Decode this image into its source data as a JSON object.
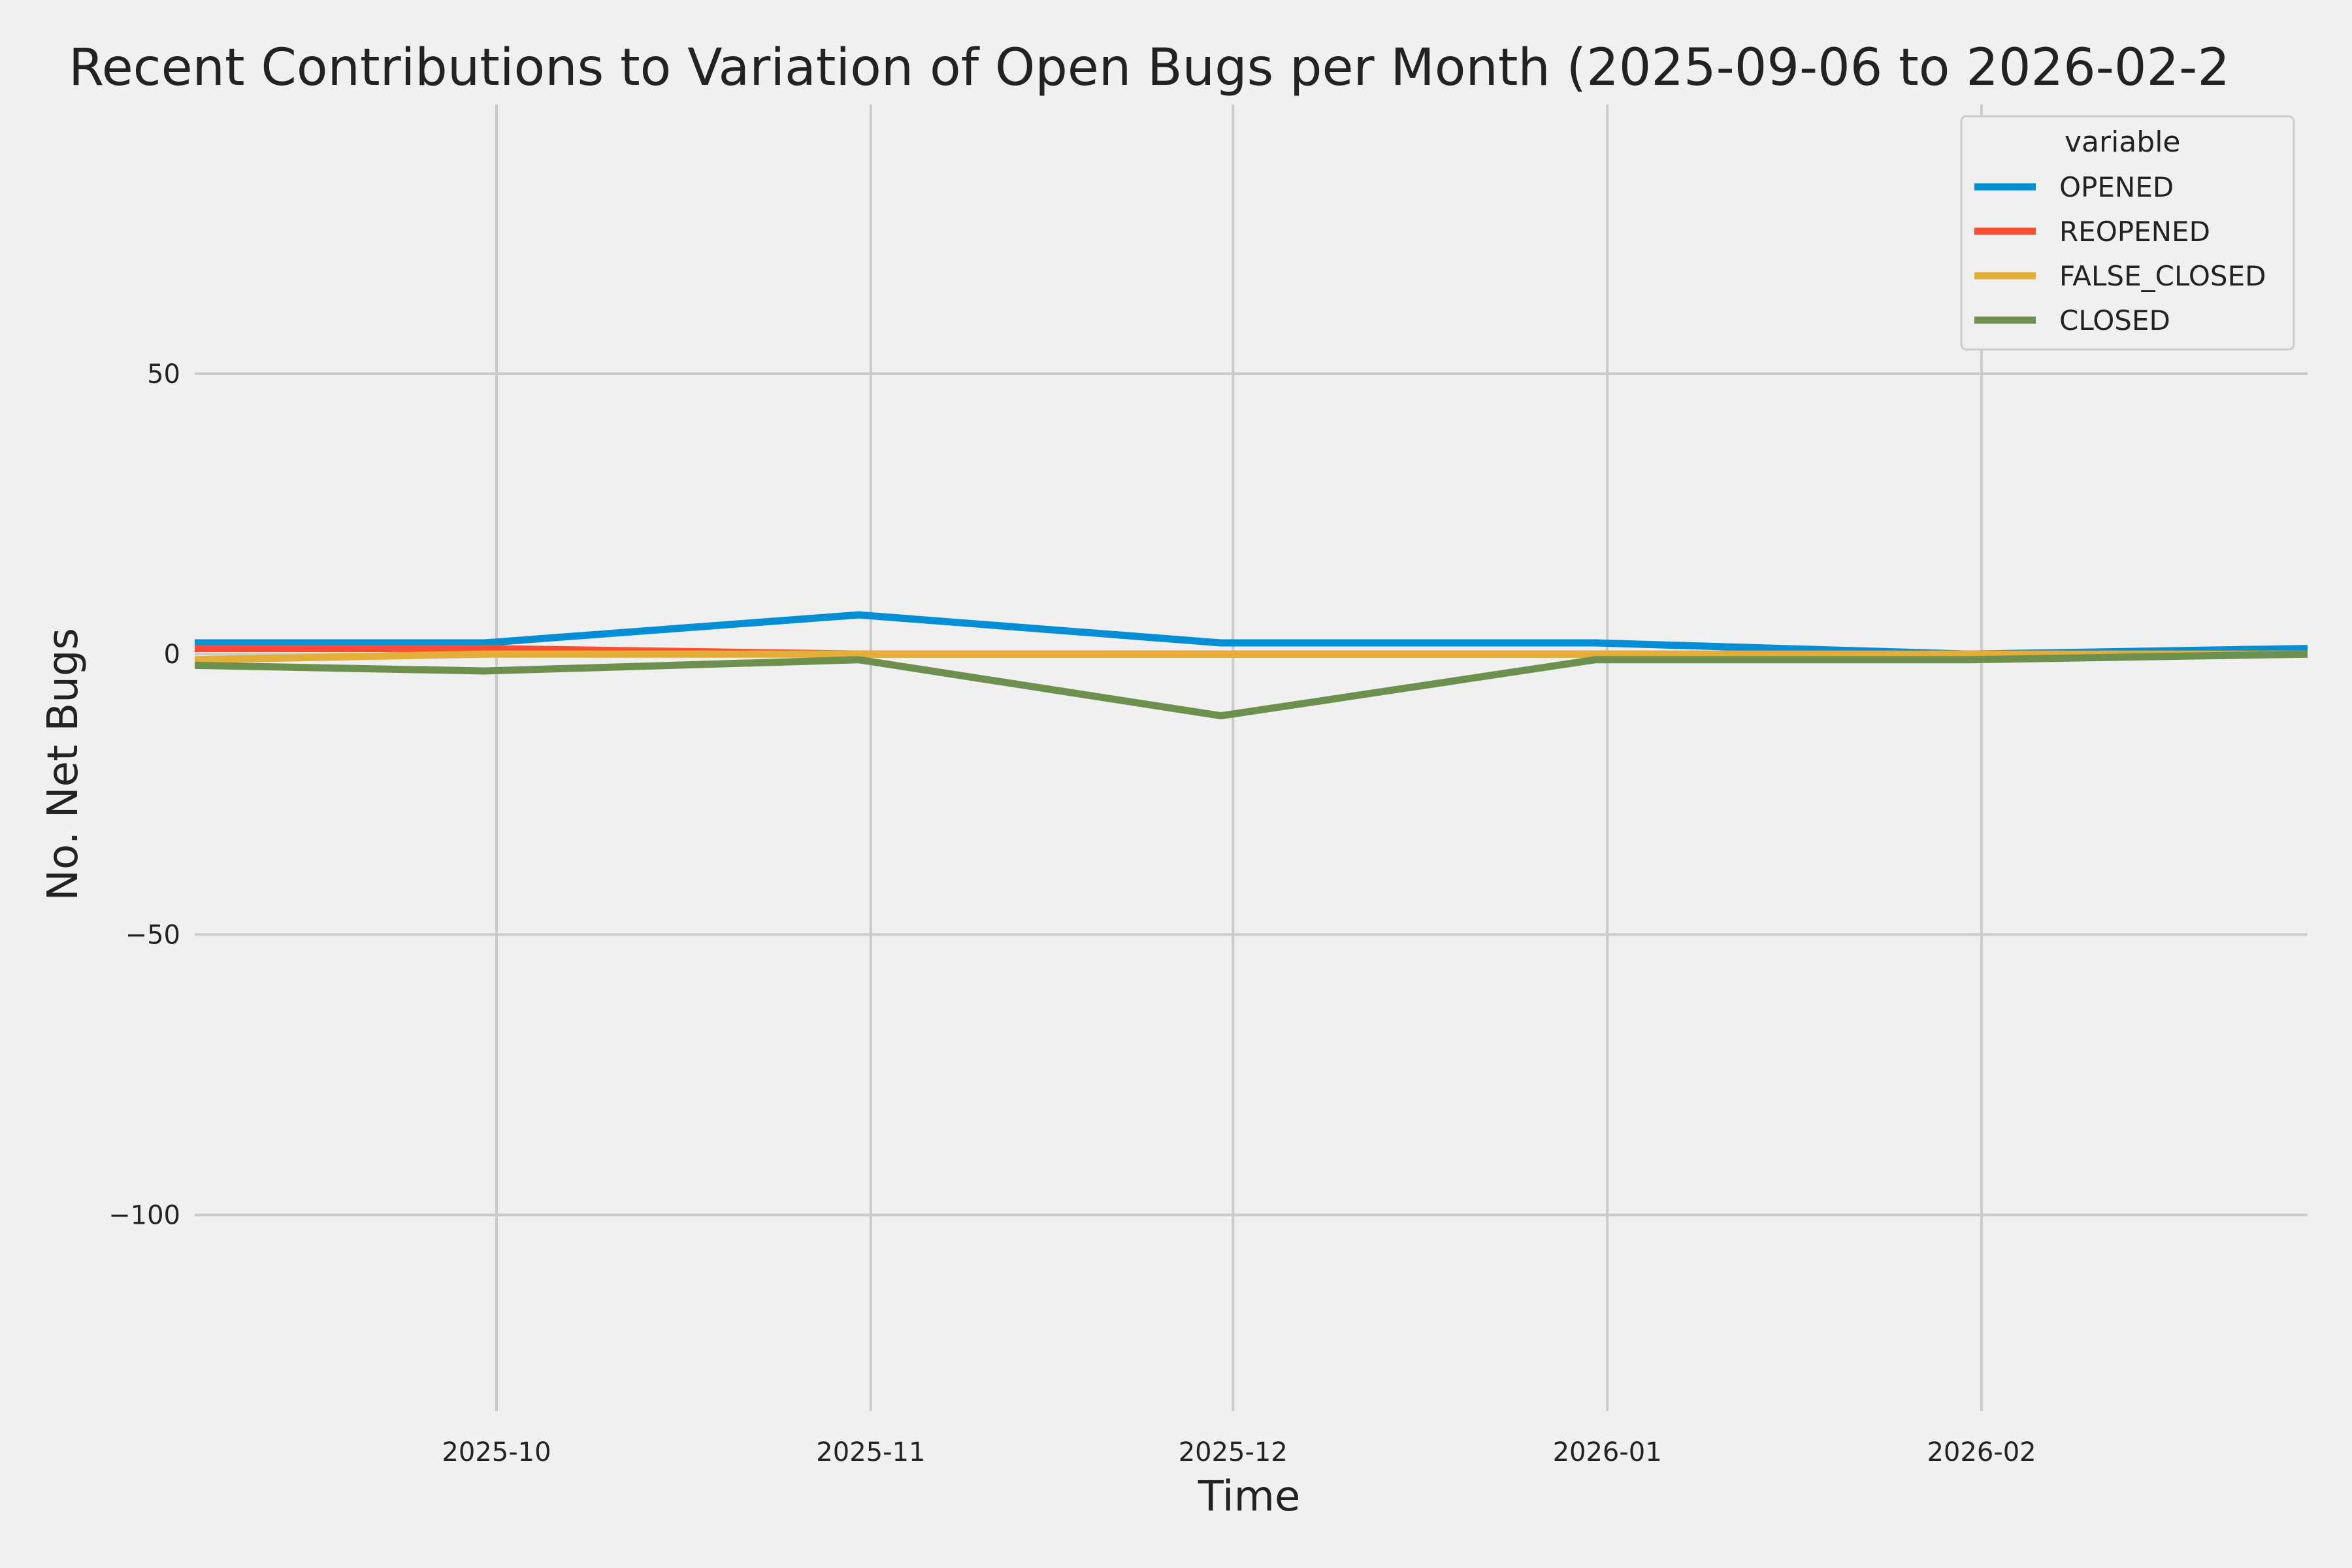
{
  "chart_data": {
    "type": "line",
    "title": "Recent Contributions to Variation of Open Bugs per Month (2025-09-06 to 2026-02-2",
    "xlabel": "Time",
    "ylabel": "No. Net Bugs",
    "x": [
      "2025-09-06",
      "2025-09-30",
      "2025-10-31",
      "2025-11-30",
      "2025-12-31",
      "2026-01-31",
      "2026-02-28"
    ],
    "x_ticks": [
      "2025-10",
      "2025-11",
      "2025-12",
      "2026-01",
      "2026-02"
    ],
    "y_ticks": [
      "50",
      "0",
      "−50",
      "−100"
    ],
    "ylim": [
      -135,
      98
    ],
    "grid": true,
    "legend": {
      "title": "variable",
      "position": "top-right"
    },
    "series": [
      {
        "name": "OPENED",
        "color": "#008fd5",
        "values": [
          2,
          2,
          7,
          2,
          2,
          0,
          1
        ]
      },
      {
        "name": "REOPENED",
        "color": "#fc4f30",
        "values": [
          1,
          1,
          0,
          0,
          0,
          0,
          0
        ]
      },
      {
        "name": "FALSE_CLOSED",
        "color": "#e5ae38",
        "values": [
          -1,
          0,
          0,
          0,
          0,
          0,
          0
        ]
      },
      {
        "name": "CLOSED",
        "color": "#6d904f",
        "values": [
          -2,
          -3,
          -1,
          -11,
          -1,
          -1,
          0
        ]
      }
    ]
  }
}
